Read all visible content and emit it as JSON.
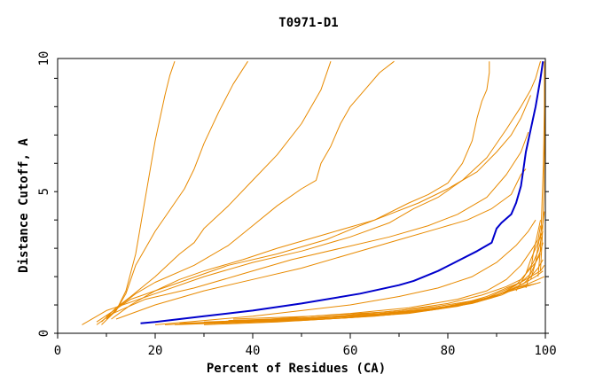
{
  "chart_data": {
    "type": "line",
    "title": "T0971-D1",
    "xlabel": "Percent of Residues (CA)",
    "ylabel": "Distance Cutoff, A",
    "xlim": [
      0,
      100
    ],
    "ylim": [
      0,
      10
    ],
    "x_ticks": [
      "0",
      "20",
      "40",
      "60",
      "80",
      "100"
    ],
    "y_ticks": [
      "0",
      "5",
      "10"
    ],
    "colors": {
      "highlight": "#0000cc",
      "others": "#e88a00",
      "axis": "#000000"
    },
    "series": [
      {
        "highlight": true,
        "x": [
          17,
          20,
          25,
          30,
          40,
          50,
          62,
          70,
          73,
          78,
          82,
          86,
          89,
          90,
          91,
          93,
          94,
          95,
          95.5,
          96,
          97,
          98,
          99,
          99.5
        ],
        "y": [
          0.35,
          0.4,
          0.5,
          0.6,
          0.8,
          1.05,
          1.4,
          1.7,
          1.85,
          2.2,
          2.55,
          2.9,
          3.2,
          3.7,
          3.9,
          4.2,
          4.6,
          5.2,
          5.8,
          6.4,
          7.2,
          8.0,
          9.0,
          9.6
        ]
      },
      {
        "x": [
          8,
          12,
          14,
          16,
          17,
          18,
          19,
          20,
          21,
          22,
          23,
          24
        ],
        "y": [
          0.3,
          0.8,
          1.5,
          2.8,
          3.8,
          4.8,
          5.8,
          6.8,
          7.6,
          8.4,
          9.1,
          9.6
        ]
      },
      {
        "x": [
          9,
          12,
          14,
          16,
          18,
          20,
          22,
          24,
          26,
          28,
          30,
          33,
          36,
          39
        ],
        "y": [
          0.3,
          0.8,
          1.4,
          2.4,
          3.0,
          3.6,
          4.1,
          4.6,
          5.1,
          5.8,
          6.7,
          7.8,
          8.8,
          9.6
        ]
      },
      {
        "x": [
          9,
          12,
          15,
          20,
          25,
          28,
          30,
          35,
          40,
          45,
          50,
          54,
          56
        ],
        "y": [
          0.4,
          0.9,
          1.3,
          2.0,
          2.8,
          3.2,
          3.7,
          4.5,
          5.4,
          6.3,
          7.4,
          8.6,
          9.6
        ]
      },
      {
        "x": [
          10,
          13,
          16,
          20,
          28,
          35,
          40,
          45,
          50,
          53,
          54,
          56,
          58,
          60,
          63,
          66,
          69
        ],
        "y": [
          0.5,
          1.0,
          1.4,
          1.8,
          2.4,
          3.1,
          3.8,
          4.5,
          5.1,
          5.4,
          6.0,
          6.6,
          7.4,
          8.0,
          8.6,
          9.2,
          9.6
        ]
      },
      {
        "x": [
          11,
          15,
          20,
          25,
          30,
          38,
          45,
          55,
          65,
          72,
          76,
          80,
          83,
          85,
          86,
          87,
          88,
          88.5,
          88.5
        ],
        "y": [
          0.5,
          1.0,
          1.5,
          1.9,
          2.2,
          2.6,
          3.0,
          3.5,
          4.0,
          4.6,
          4.9,
          5.3,
          6.0,
          6.8,
          7.6,
          8.2,
          8.6,
          9.2,
          9.6
        ]
      },
      {
        "x": [
          5,
          10,
          20,
          30,
          40,
          50,
          60,
          68,
          73,
          78,
          83,
          88,
          92,
          95,
          97,
          98,
          99
        ],
        "y": [
          0.3,
          0.8,
          1.4,
          2.0,
          2.5,
          2.9,
          3.4,
          3.9,
          4.4,
          4.8,
          5.4,
          6.2,
          7.2,
          8.0,
          8.6,
          9.0,
          9.6
        ]
      },
      {
        "x": [
          8,
          15,
          25,
          35,
          45,
          55,
          62,
          68,
          74,
          80,
          86,
          90,
          93,
          95,
          96,
          97
        ],
        "y": [
          0.4,
          1.2,
          1.8,
          2.4,
          2.8,
          3.3,
          3.8,
          4.2,
          4.6,
          5.1,
          5.7,
          6.4,
          7.0,
          7.6,
          8.0,
          8.4
        ]
      },
      {
        "x": [
          10,
          18,
          28,
          38,
          48,
          58,
          68,
          76,
          82,
          88,
          92,
          95,
          96.5
        ],
        "y": [
          0.6,
          1.2,
          1.6,
          2.1,
          2.6,
          3.0,
          3.4,
          3.8,
          4.2,
          4.8,
          5.6,
          6.4,
          7.1
        ]
      },
      {
        "x": [
          12,
          20,
          30,
          40,
          50,
          60,
          70,
          78,
          84,
          89,
          93,
          95,
          96
        ],
        "y": [
          0.5,
          1.0,
          1.5,
          1.9,
          2.3,
          2.8,
          3.3,
          3.7,
          4.0,
          4.4,
          4.9,
          5.6,
          5.8
        ]
      },
      {
        "x": [
          20,
          30,
          40,
          50,
          60,
          70,
          78,
          85,
          90,
          94,
          96.5,
          98
        ],
        "y": [
          0.3,
          0.45,
          0.6,
          0.8,
          1.0,
          1.3,
          1.6,
          2.0,
          2.5,
          3.1,
          3.6,
          4.0
        ]
      },
      {
        "x": [
          22,
          35,
          48,
          60,
          72,
          82,
          88,
          92,
          95,
          97,
          98.5,
          99
        ],
        "y": [
          0.3,
          0.4,
          0.55,
          0.7,
          0.9,
          1.2,
          1.5,
          1.9,
          2.4,
          2.9,
          3.3,
          3.8
        ]
      },
      {
        "x": [
          24,
          40,
          55,
          68,
          78,
          86,
          91,
          94,
          96,
          97.5,
          98.5,
          99.3
        ],
        "y": [
          0.3,
          0.4,
          0.5,
          0.65,
          0.85,
          1.1,
          1.4,
          1.7,
          2.1,
          2.5,
          2.9,
          3.4
        ]
      },
      {
        "x": [
          25,
          40,
          55,
          68,
          80,
          88,
          92,
          95,
          97,
          98,
          99,
          99.5
        ],
        "y": [
          0.35,
          0.45,
          0.55,
          0.7,
          0.95,
          1.25,
          1.55,
          1.8,
          2.1,
          2.5,
          2.9,
          3.2
        ]
      },
      {
        "x": [
          26,
          42,
          57,
          70,
          80,
          87,
          92,
          95,
          96.5,
          98,
          99
        ],
        "y": [
          0.35,
          0.45,
          0.6,
          0.8,
          1.05,
          1.35,
          1.65,
          1.9,
          2.2,
          2.5,
          2.8
        ]
      },
      {
        "x": [
          28,
          45,
          60,
          72,
          82,
          89,
          93,
          95.5,
          97,
          98.5,
          99.5
        ],
        "y": [
          0.35,
          0.45,
          0.55,
          0.7,
          0.95,
          1.25,
          1.55,
          1.75,
          2.0,
          2.3,
          2.6
        ]
      },
      {
        "x": [
          30,
          45,
          60,
          72,
          82,
          88,
          92,
          95,
          97,
          99,
          99.8
        ],
        "y": [
          0.3,
          0.4,
          0.55,
          0.75,
          1.0,
          1.3,
          1.6,
          1.8,
          2.0,
          2.2,
          2.4
        ]
      },
      {
        "x": [
          30,
          48,
          62,
          75,
          84,
          90,
          93.5,
          96,
          98,
          99.5
        ],
        "y": [
          0.4,
          0.5,
          0.6,
          0.8,
          1.05,
          1.35,
          1.6,
          1.8,
          2.0,
          2.2
        ]
      },
      {
        "x": [
          32,
          50,
          65,
          76,
          85,
          91,
          94,
          96.5,
          98.5,
          99.8
        ],
        "y": [
          0.35,
          0.45,
          0.6,
          0.8,
          1.05,
          1.35,
          1.6,
          1.75,
          1.9,
          2.0
        ]
      },
      {
        "x": [
          34,
          50,
          64,
          76,
          86,
          91,
          95,
          97,
          99
        ],
        "y": [
          0.4,
          0.5,
          0.65,
          0.85,
          1.1,
          1.4,
          1.6,
          1.7,
          1.8
        ]
      },
      {
        "x": [
          35,
          52,
          66,
          78,
          86,
          91,
          94,
          96.5,
          98
        ],
        "y": [
          0.45,
          0.55,
          0.7,
          0.9,
          1.15,
          1.4,
          1.6,
          1.7,
          1.75
        ]
      },
      {
        "x": [
          36,
          52,
          67,
          78,
          87,
          92,
          95,
          97
        ],
        "y": [
          0.5,
          0.6,
          0.75,
          0.95,
          1.2,
          1.45,
          1.6,
          1.7
        ]
      },
      {
        "x": [
          96,
          97,
          97.5,
          98,
          98.5,
          99
        ],
        "y": [
          1.6,
          2.2,
          2.8,
          3.2,
          3.6,
          4.0
        ]
      },
      {
        "x": [
          97,
          98,
          98.5,
          99,
          99.5,
          99.8
        ],
        "y": [
          1.9,
          2.5,
          3.1,
          3.5,
          3.9,
          4.3
        ]
      },
      {
        "x": [
          94,
          96,
          97,
          98,
          99,
          99.5
        ],
        "y": [
          1.5,
          2.1,
          2.6,
          3.0,
          3.4,
          3.6
        ]
      },
      {
        "x": [
          98.5,
          99,
          99.3,
          99.6,
          99.8,
          99.8
        ],
        "y": [
          2.0,
          3.0,
          4.5,
          6.0,
          8.0,
          9.6
        ]
      },
      {
        "x": [
          99,
          99.4,
          99.7,
          99.9,
          100
        ],
        "y": [
          2.2,
          3.5,
          5.0,
          7.5,
          9.6
        ]
      }
    ]
  }
}
